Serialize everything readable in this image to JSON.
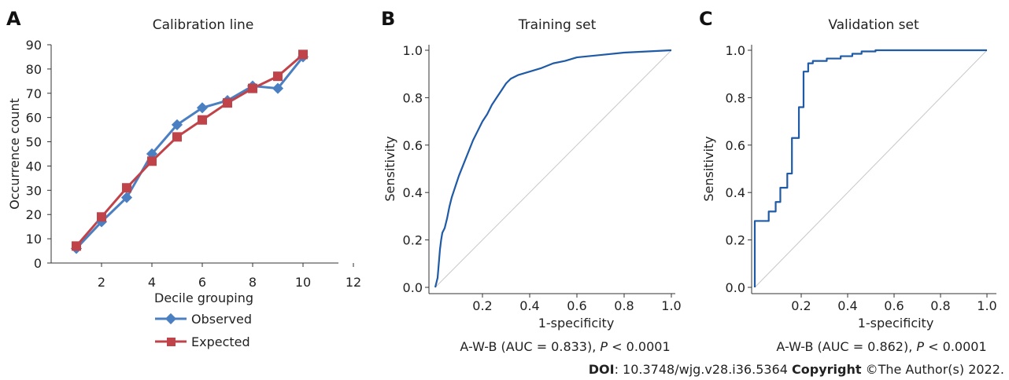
{
  "chart_data": [
    {
      "panel": "A",
      "type": "line",
      "title": "Calibration line",
      "xlabel": "Decile grouping",
      "ylabel": "Occurrence count",
      "xlim": [
        0,
        12
      ],
      "ylim": [
        0,
        90
      ],
      "xticks": [
        "2",
        "4",
        "6",
        "8",
        "10",
        "12"
      ],
      "yticks": [
        "0",
        "10",
        "20",
        "30",
        "40",
        "50",
        "60",
        "70",
        "80",
        "90"
      ],
      "legend_placement": "below",
      "series": [
        {
          "name": "Observed",
          "color": "#4a7fc1",
          "marker": "diamond",
          "x": [
            1,
            2,
            3,
            4,
            5,
            6,
            7,
            8,
            9,
            10
          ],
          "y": [
            6,
            17,
            27,
            45,
            57,
            64,
            67,
            73,
            72,
            85
          ]
        },
        {
          "name": "Expected",
          "color": "#c0434a",
          "marker": "square",
          "x": [
            1,
            2,
            3,
            4,
            5,
            6,
            7,
            8,
            9,
            10
          ],
          "y": [
            7,
            19,
            31,
            42,
            52,
            59,
            66,
            72,
            77,
            86
          ]
        }
      ]
    },
    {
      "panel": "B",
      "type": "line",
      "title": "Training set",
      "xlabel": "1-specificity",
      "ylabel": "Sensitivity",
      "xlim": [
        0,
        1
      ],
      "ylim": [
        0,
        1
      ],
      "xticks": [
        "0.2",
        "0.4",
        "0.6",
        "0.8",
        "1.0"
      ],
      "yticks": [
        "0.0",
        "0.2",
        "0.4",
        "0.6",
        "0.8",
        "1.0"
      ],
      "caption_prefix": "A-W-B (AUC = 0.833), ",
      "caption_p": "P",
      "caption_suffix": " < 0.0001",
      "series": [
        {
          "color": "#1f5aa6",
          "step": false,
          "x": [
            0,
            0.01,
            0.015,
            0.02,
            0.025,
            0.03,
            0.04,
            0.05,
            0.06,
            0.07,
            0.08,
            0.09,
            0.1,
            0.12,
            0.14,
            0.16,
            0.18,
            0.2,
            0.22,
            0.24,
            0.26,
            0.28,
            0.3,
            0.32,
            0.35,
            0.4,
            0.45,
            0.5,
            0.55,
            0.6,
            0.7,
            0.8,
            0.9,
            1.0
          ],
          "y": [
            0,
            0.04,
            0.1,
            0.16,
            0.2,
            0.23,
            0.25,
            0.29,
            0.34,
            0.38,
            0.41,
            0.44,
            0.47,
            0.52,
            0.57,
            0.62,
            0.66,
            0.7,
            0.73,
            0.77,
            0.8,
            0.83,
            0.86,
            0.88,
            0.895,
            0.91,
            0.925,
            0.945,
            0.955,
            0.97,
            0.98,
            0.99,
            0.995,
            1.0
          ]
        },
        {
          "color": "#c8c8c8",
          "x": [
            0,
            1
          ],
          "y": [
            0,
            1
          ]
        }
      ]
    },
    {
      "panel": "C",
      "type": "line",
      "title": "Validation set",
      "xlabel": "1-specificity",
      "ylabel": "Sensitivity",
      "xlim": [
        0,
        1
      ],
      "ylim": [
        0,
        1
      ],
      "xticks": [
        "0.2",
        "0.4",
        "0.6",
        "0.8",
        "1.0"
      ],
      "yticks": [
        "0.0",
        "0.2",
        "0.4",
        "0.6",
        "0.8",
        "1.0"
      ],
      "caption_prefix": "A-W-B (AUC = 0.862), ",
      "caption_p": "P",
      "caption_suffix": " < 0.0001",
      "series": [
        {
          "color": "#1f5aa6",
          "step": true,
          "x": [
            0,
            0,
            0.06,
            0.06,
            0.09,
            0.09,
            0.11,
            0.11,
            0.14,
            0.14,
            0.16,
            0.16,
            0.19,
            0.19,
            0.21,
            0.21,
            0.23,
            0.23,
            0.25,
            0.25,
            0.31,
            0.31,
            0.37,
            0.37,
            0.42,
            0.42,
            0.46,
            0.46,
            0.52,
            0.52,
            1.0
          ],
          "y": [
            0,
            0.28,
            0.28,
            0.32,
            0.32,
            0.36,
            0.36,
            0.42,
            0.42,
            0.48,
            0.48,
            0.63,
            0.63,
            0.76,
            0.76,
            0.91,
            0.91,
            0.945,
            0.945,
            0.955,
            0.955,
            0.965,
            0.965,
            0.975,
            0.975,
            0.985,
            0.985,
            0.995,
            0.995,
            1.0,
            1.0
          ]
        },
        {
          "color": "#c8c8c8",
          "x": [
            0,
            1
          ],
          "y": [
            0,
            1
          ]
        }
      ]
    }
  ],
  "panel_labels": [
    "A",
    "B",
    "C"
  ],
  "footer": {
    "doi_label": "DOI",
    "doi_value": ": 10.3748/wjg.v28.i36.5364 ",
    "copyright_label": "Copyright",
    "copyright_value": " ©The Author(s) 2022."
  }
}
